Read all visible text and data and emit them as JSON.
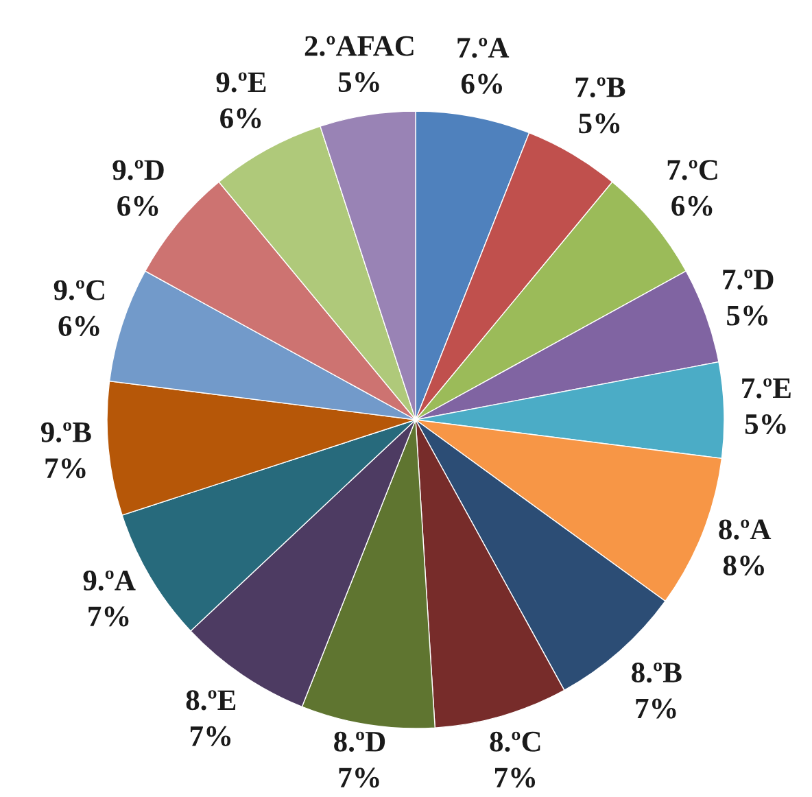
{
  "chart_data": {
    "type": "pie",
    "categories": [
      "7.ºA",
      "7.ºB",
      "7.ºC",
      "7.ºD",
      "7.ºE",
      "8.ºA",
      "8.ºB",
      "8.ºC",
      "8.ºD",
      "8.ºE",
      "9.ºA",
      "9.ºB",
      "9.ºC",
      "9.ºD",
      "9.ºE",
      "2.ºAFAC"
    ],
    "values": [
      6,
      5,
      6,
      5,
      5,
      8,
      7,
      7,
      7,
      7,
      7,
      7,
      6,
      6,
      6,
      5
    ],
    "value_labels": [
      "6%",
      "5%",
      "6%",
      "5%",
      "5%",
      "8%",
      "7%",
      "7%",
      "7%",
      "7%",
      "7%",
      "7%",
      "6%",
      "6%",
      "6%",
      "5%"
    ],
    "colors": [
      "#4f81bd",
      "#c0504d",
      "#9bbb59",
      "#8064a2",
      "#4bacc6",
      "#f79646",
      "#2c4d75",
      "#772c2a",
      "#5f7530",
      "#4d3b62",
      "#276a7c",
      "#b65708",
      "#729aca",
      "#cd7371",
      "#afc97a",
      "#9983b5"
    ],
    "legend": false
  }
}
